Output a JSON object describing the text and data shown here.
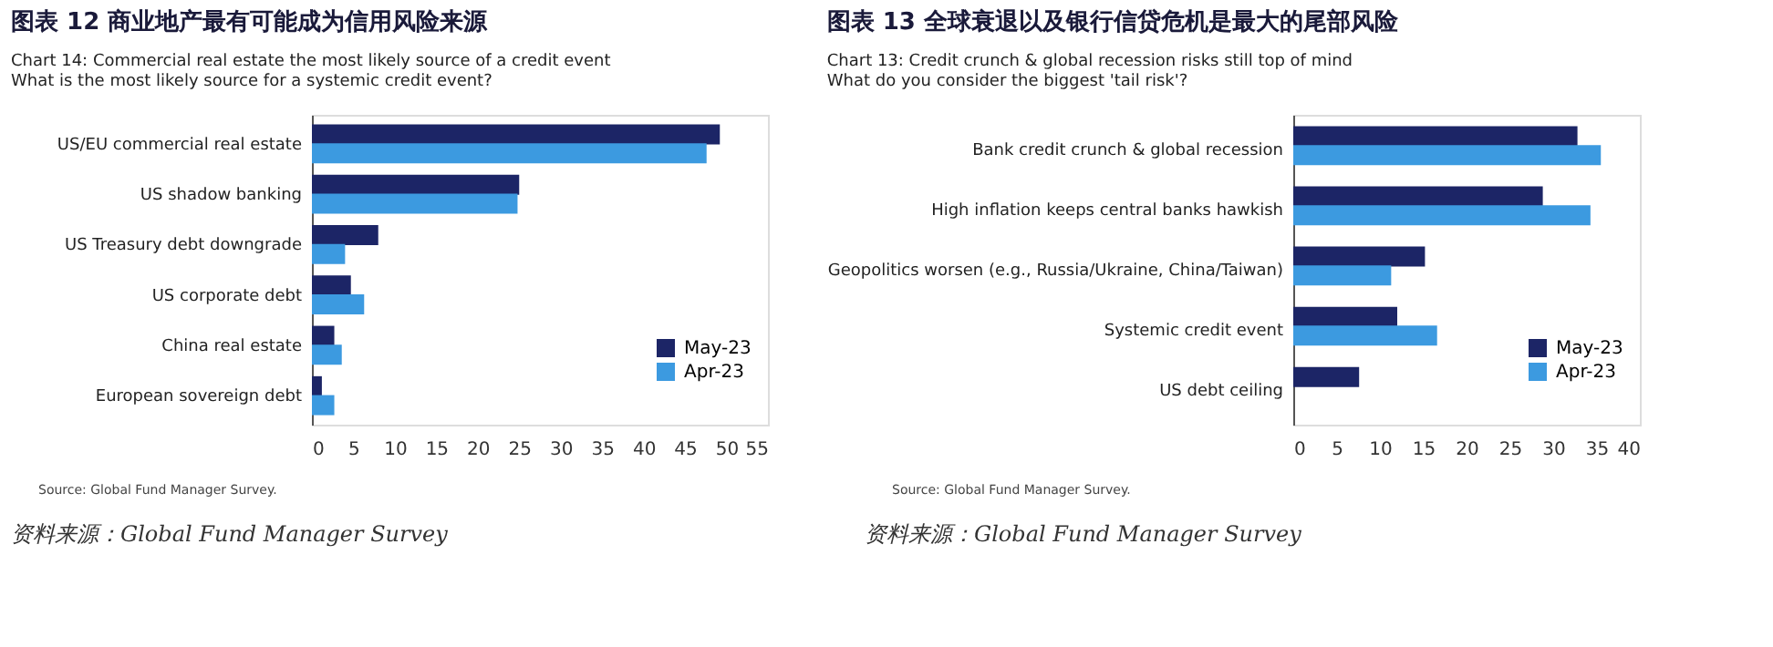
{
  "chart_data": [
    {
      "type": "bar",
      "orientation": "horizontal",
      "title": "图表 12   商业地产最有可能成为信用风险来源",
      "subtitle": "Chart 14: Commercial real estate the most likely source of a credit event",
      "annotations": [
        "What is the most likely source for a systemic credit event?",
        "Source: Global Fund Manager Survey.",
        "资料来源：Global Fund Manager Survey"
      ],
      "categories": [
        "US/EU commercial real estate",
        "US shadow banking",
        "US Treasury debt downgrade",
        "US corporate debt",
        "China real estate",
        "European sovereign debt"
      ],
      "series": [
        {
          "name": "May-23",
          "color": "#1c2566",
          "values": [
            49.2,
            25,
            8,
            4.7,
            2.7,
            1.2
          ]
        },
        {
          "name": "Apr-23",
          "color": "#3c9ae0",
          "values": [
            47.6,
            24.8,
            4,
            6.3,
            3.6,
            2.7
          ]
        }
      ],
      "xlim": [
        0,
        55
      ],
      "xticks": [
        0,
        5,
        10,
        15,
        20,
        25,
        30,
        35,
        40,
        45,
        50,
        55
      ],
      "grid": false,
      "legend": "bottom right"
    },
    {
      "type": "bar",
      "orientation": "horizontal",
      "title": "图表 13   全球衰退以及银行信贷危机是最大的尾部风险",
      "subtitle": "Chart 13: Credit crunch & global recession risks still top of mind",
      "annotations": [
        "What do you consider the biggest 'tail risk'?",
        "Source: Global Fund Manager Survey.",
        "资料来源：Global Fund Manager Survey"
      ],
      "categories": [
        "Bank credit crunch & global recession",
        "High inflation keeps central banks hawkish",
        "Geopolitics worsen (e.g., Russia/Ukraine, China/Taiwan)",
        "Systemic credit event",
        "US debt ceiling"
      ],
      "series": [
        {
          "name": "May-23",
          "color": "#1c2566",
          "values": [
            32.8,
            28.8,
            15.2,
            12,
            7.6
          ]
        },
        {
          "name": "Apr-23",
          "color": "#3c9ae0",
          "values": [
            35.5,
            34.3,
            11.3,
            16.6,
            null
          ]
        }
      ],
      "xlim": [
        0,
        40
      ],
      "xticks": [
        0,
        5,
        10,
        15,
        20,
        25,
        30,
        35,
        40
      ],
      "grid": false,
      "legend": "bottom right"
    }
  ]
}
